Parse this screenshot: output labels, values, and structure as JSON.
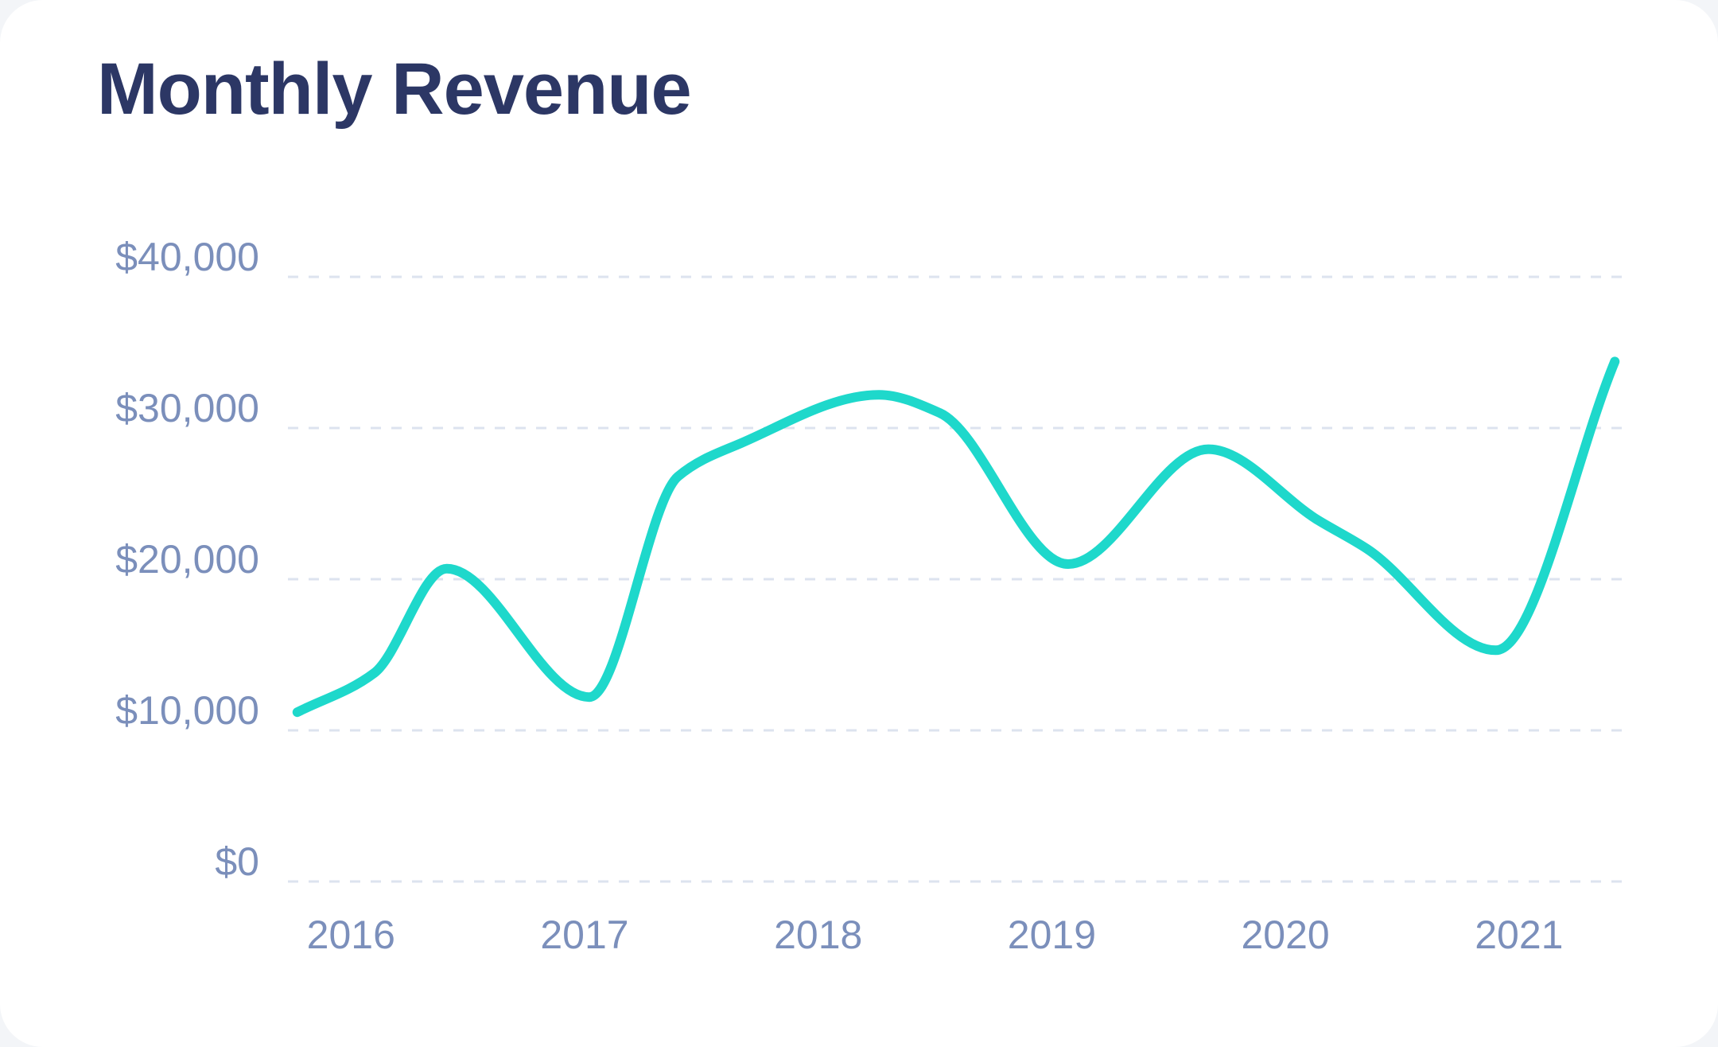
{
  "card": {
    "title": "Monthly Revenue"
  },
  "colors": {
    "line": "#1ed8cb",
    "title": "#2c3765",
    "tick": "#7b8fbb",
    "grid": "#dde3ef"
  },
  "chart_data": {
    "type": "line",
    "title": "Monthly Revenue",
    "xlabel": "",
    "ylabel": "",
    "ylim": [
      0,
      40000
    ],
    "xlim": [
      2016,
      2021.72
    ],
    "grid": true,
    "legend": "none",
    "y_ticks": [
      {
        "value": 0,
        "label": "$0"
      },
      {
        "value": 10000,
        "label": "$10,000"
      },
      {
        "value": 20000,
        "label": "$20,000"
      },
      {
        "value": 30000,
        "label": "$30,000"
      },
      {
        "value": 40000,
        "label": "$40,000"
      }
    ],
    "x_ticks": [
      {
        "value": 2016.27,
        "label": "2016"
      },
      {
        "value": 2017.27,
        "label": "2017"
      },
      {
        "value": 2018.27,
        "label": "2018"
      },
      {
        "value": 2019.27,
        "label": "2019"
      },
      {
        "value": 2020.27,
        "label": "2020"
      },
      {
        "value": 2021.27,
        "label": "2021"
      }
    ],
    "series": [
      {
        "name": "Monthly Revenue",
        "x": [
          2016.04,
          2016.37,
          2016.68,
          2017.29,
          2017.67,
          2017.94,
          2018.53,
          2018.79,
          2019.34,
          2019.94,
          2020.41,
          2020.62,
          2021.17,
          2021.68
        ],
        "values": [
          11200,
          13800,
          20700,
          12200,
          26800,
          29000,
          32200,
          31000,
          21000,
          28600,
          23900,
          22000,
          15300,
          34400
        ]
      }
    ]
  }
}
